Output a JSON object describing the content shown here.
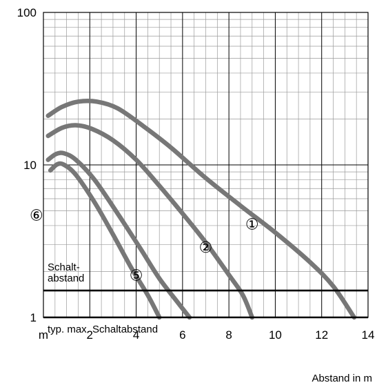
{
  "chart_data": {
    "type": "line",
    "title": "",
    "xlabel": "Abstand in m",
    "ylabel": "",
    "x_unit_label": "m",
    "xlim": [
      0,
      14
    ],
    "ylim": [
      1,
      100
    ],
    "yscale": "log",
    "grid": true,
    "x_ticks": [
      {
        "value": 2,
        "label": "2"
      },
      {
        "value": 4,
        "label": "4"
      },
      {
        "value": 6,
        "label": "6"
      },
      {
        "value": 8,
        "label": "8"
      },
      {
        "value": 10,
        "label": "10"
      },
      {
        "value": 12,
        "label": "12"
      },
      {
        "value": 14,
        "label": "14"
      }
    ],
    "y_ticks": [
      {
        "value": 1,
        "label": "1"
      },
      {
        "value": 10,
        "label": "10"
      },
      {
        "value": 100,
        "label": "100"
      }
    ],
    "series": [
      {
        "name": "①",
        "color": "#777777",
        "points": [
          [
            0.2,
            21
          ],
          [
            0.8,
            24
          ],
          [
            1.5,
            26
          ],
          [
            2.3,
            26
          ],
          [
            3.2,
            23.5
          ],
          [
            4.3,
            18
          ],
          [
            5.5,
            13
          ],
          [
            7,
            8.2
          ],
          [
            8.5,
            5.4
          ],
          [
            10,
            3.6
          ],
          [
            11.5,
            2.3
          ],
          [
            12.5,
            1.6
          ],
          [
            13.4,
            1.0
          ]
        ],
        "label_at": [
          9.0,
          4.1
        ]
      },
      {
        "name": "②",
        "color": "#777777",
        "points": [
          [
            0.2,
            15.5
          ],
          [
            0.8,
            17.5
          ],
          [
            1.4,
            18.2
          ],
          [
            2.1,
            17.2
          ],
          [
            3.0,
            14.5
          ],
          [
            4.0,
            10.8
          ],
          [
            5.0,
            7.3
          ],
          [
            6.0,
            4.8
          ],
          [
            7.0,
            3.1
          ],
          [
            8.0,
            1.9
          ],
          [
            8.6,
            1.4
          ],
          [
            9.0,
            1.0
          ]
        ],
        "label_at": [
          7.0,
          2.9
        ]
      },
      {
        "name": "⑤",
        "color": "#777777",
        "points": [
          [
            0.2,
            10.8
          ],
          [
            0.55,
            11.8
          ],
          [
            0.9,
            11.9
          ],
          [
            1.4,
            10.8
          ],
          [
            2.2,
            8.0
          ],
          [
            3.2,
            4.8
          ],
          [
            4.2,
            2.8
          ],
          [
            5.0,
            1.8
          ],
          [
            5.8,
            1.25
          ],
          [
            6.3,
            1.0
          ]
        ],
        "label_at": [
          4.0,
          1.9
        ]
      },
      {
        "name": "⑥",
        "color": "#777777",
        "points": [
          [
            0.3,
            9.2
          ],
          [
            0.6,
            10.1
          ],
          [
            0.9,
            10.0
          ],
          [
            1.4,
            8.6
          ],
          [
            2.2,
            5.7
          ],
          [
            3.0,
            3.5
          ],
          [
            3.8,
            2.1
          ],
          [
            4.5,
            1.4
          ],
          [
            5.0,
            1.0
          ]
        ],
        "label_at": [
          -0.3,
          4.7
        ]
      }
    ],
    "reference_lines": [
      {
        "y": 1.5,
        "label_line1": "Schalt-",
        "label_line2": "abstand"
      },
      {
        "y": 1.0,
        "label": "typ. max. Schaltabstand"
      }
    ]
  }
}
